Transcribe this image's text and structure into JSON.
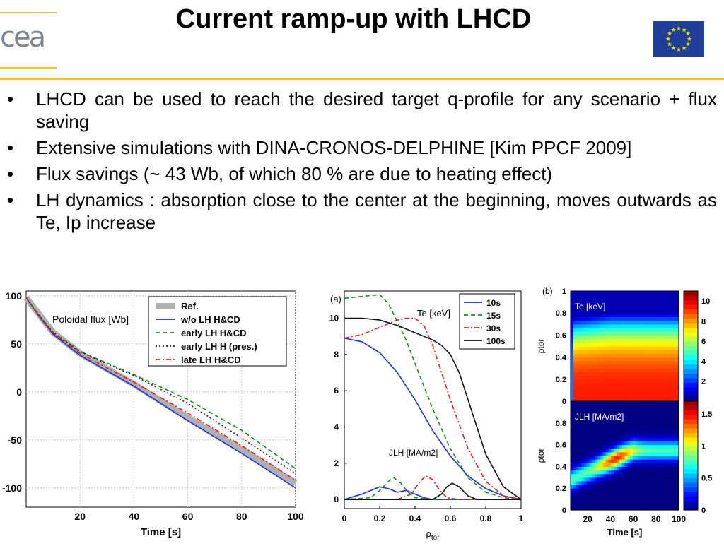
{
  "header": {
    "logo_text": "cea",
    "title": "Current ramp-up with LHCD",
    "flag_icon": "eu-flag-icon"
  },
  "bullets": [
    "LHCD can be used to reach the desired target q-profile for any scenario + flux saving",
    "Extensive simulations with DINA-CRONOS-DELPHINE [Kim PPCF 2009]",
    "Flux savings (~ 43 Wb, of which 80 % are due to heating effect)",
    "LH dynamics : absorption close to the center at the beginning, moves outwards as Te, Ip increase"
  ],
  "chart_data": [
    {
      "type": "line",
      "annotation": "Poloidal flux [Wb]",
      "xlabel": "Time [s]",
      "ylabel": "",
      "xlim": [
        0,
        100
      ],
      "ylim": [
        -120,
        105
      ],
      "xticks": [
        "20",
        "40",
        "60",
        "80",
        "100"
      ],
      "yticks": [
        "100",
        "50",
        "0",
        "-50",
        "-100"
      ],
      "grid": true,
      "legend": "top-right",
      "series": [
        {
          "name": "Ref.",
          "color": "#b0b0b0",
          "style": "band",
          "x": [
            0,
            5,
            10,
            20,
            30,
            40,
            60,
            80,
            100
          ],
          "y": [
            98,
            80,
            62,
            40,
            24,
            8,
            -27,
            -60,
            -95
          ]
        },
        {
          "name": "w/o LH H&CD",
          "color": "#1f2fd6",
          "style": "solid",
          "x": [
            0,
            5,
            10,
            20,
            30,
            40,
            60,
            80,
            100
          ],
          "y": [
            98,
            78,
            60,
            38,
            22,
            6,
            -30,
            -64,
            -100
          ]
        },
        {
          "name": "early LH H&CD",
          "color": "#1a8a1a",
          "style": "dashed",
          "x": [
            0,
            5,
            10,
            20,
            30,
            40,
            60,
            80,
            100
          ],
          "y": [
            98,
            79,
            62,
            42,
            30,
            18,
            -8,
            -40,
            -80
          ]
        },
        {
          "name": "early LH H (pres.)",
          "color": "#222222",
          "style": "dotted",
          "x": [
            0,
            5,
            10,
            20,
            30,
            40,
            60,
            80,
            100
          ],
          "y": [
            98,
            79,
            62,
            42,
            29,
            17,
            -12,
            -48,
            -85
          ]
        },
        {
          "name": "late LH H&CD",
          "color": "#e02020",
          "style": "dashdot",
          "x": [
            0,
            5,
            10,
            20,
            30,
            40,
            60,
            80,
            100
          ],
          "y": [
            98,
            78,
            61,
            40,
            25,
            10,
            -22,
            -56,
            -92
          ]
        }
      ]
    },
    {
      "type": "line",
      "panel_label": "(a)",
      "xlabel": "ρtor",
      "xlim": [
        0,
        1
      ],
      "ylim": [
        -0.5,
        11.5
      ],
      "xticks": [
        "0",
        "0.2",
        "0.4",
        "0.6",
        "0.8",
        "1"
      ],
      "yticks": [
        "0",
        "2",
        "4",
        "6",
        "8",
        "10"
      ],
      "annotations": [
        "Te [keV]",
        "JLH [MA/m2]"
      ],
      "legend": "top-right",
      "series": [
        {
          "name": "10s",
          "color": "#1f2fd6",
          "style": "solid",
          "x": [
            0,
            0.1,
            0.2,
            0.3,
            0.4,
            0.5,
            0.6,
            0.7,
            0.8,
            0.9,
            1.0
          ],
          "y": [
            8.9,
            8.7,
            8.1,
            7.0,
            5.5,
            3.8,
            2.4,
            1.3,
            0.6,
            0.2,
            0.0
          ]
        },
        {
          "name": "15s",
          "color": "#1a8a1a",
          "style": "dashed",
          "x": [
            0,
            0.1,
            0.2,
            0.25,
            0.3,
            0.35,
            0.4,
            0.5,
            0.6,
            0.7,
            0.8,
            0.9,
            1.0
          ],
          "y": [
            11.1,
            11.2,
            11.3,
            10.8,
            9.8,
            8.8,
            7.5,
            5.0,
            2.8,
            1.2,
            0.4,
            0.1,
            0.0
          ]
        },
        {
          "name": "30s",
          "color": "#e02020",
          "style": "dashdot",
          "x": [
            0,
            0.1,
            0.2,
            0.3,
            0.35,
            0.4,
            0.45,
            0.5,
            0.6,
            0.7,
            0.8,
            0.9,
            1.0
          ],
          "y": [
            8.9,
            9.1,
            9.5,
            9.9,
            10.0,
            10.0,
            9.6,
            8.5,
            5.5,
            2.8,
            1.0,
            0.2,
            0.0
          ]
        },
        {
          "name": "100s",
          "color": "#111111",
          "style": "solid",
          "x": [
            0,
            0.1,
            0.2,
            0.3,
            0.4,
            0.5,
            0.55,
            0.6,
            0.65,
            0.7,
            0.8,
            0.9,
            1.0
          ],
          "y": [
            10.0,
            10.0,
            9.9,
            9.6,
            9.2,
            8.8,
            8.5,
            8.0,
            7.0,
            5.5,
            2.5,
            0.7,
            0.0
          ]
        },
        {
          "name": "JLH 10s",
          "color": "#1f2fd6",
          "style": "solid",
          "x": [
            0,
            0.1,
            0.15,
            0.2,
            0.25,
            0.3,
            0.35,
            0.4,
            0.45,
            0.5,
            0.6,
            0.8,
            1.0
          ],
          "y": [
            0.0,
            0.3,
            0.5,
            0.7,
            0.6,
            0.4,
            0.5,
            0.3,
            0.1,
            0.0,
            0.0,
            0.0,
            0.0
          ]
        },
        {
          "name": "JLH 15s",
          "color": "#1a8a1a",
          "style": "dashed",
          "x": [
            0,
            0.15,
            0.2,
            0.25,
            0.28,
            0.32,
            0.36,
            0.4,
            0.5,
            0.7,
            1.0
          ],
          "y": [
            0.0,
            0.1,
            0.5,
            1.0,
            1.2,
            0.9,
            0.4,
            0.1,
            0.0,
            0.0,
            0.0
          ]
        },
        {
          "name": "JLH 30s",
          "color": "#e02020",
          "style": "dashdot",
          "x": [
            0,
            0.3,
            0.38,
            0.42,
            0.46,
            0.5,
            0.54,
            0.58,
            0.65,
            1.0
          ],
          "y": [
            0.0,
            0.0,
            0.3,
            0.9,
            1.3,
            1.1,
            0.5,
            0.1,
            0.0,
            0.0
          ]
        },
        {
          "name": "JLH 100s",
          "color": "#111111",
          "style": "solid",
          "x": [
            0,
            0.5,
            0.55,
            0.58,
            0.61,
            0.65,
            0.7,
            0.75,
            1.0
          ],
          "y": [
            0.0,
            0.0,
            0.3,
            0.7,
            0.9,
            0.7,
            0.2,
            0.0,
            0.0
          ]
        }
      ]
    },
    {
      "type": "heatmap",
      "panel_label": "(b)",
      "xlabel": "Time [s]",
      "xticks": [
        "20",
        "40",
        "60",
        "80",
        "100"
      ],
      "subplots": [
        {
          "annotation": "Te [keV]",
          "ylabel": "ρtor",
          "ylim": [
            0,
            1
          ],
          "yticks": [
            "1",
            "0.8",
            "0.6",
            "0.4",
            "0.2",
            "0"
          ],
          "colorbar_ticks": [
            "10",
            "8",
            "6",
            "4",
            "2"
          ],
          "vmin": 0,
          "vmax": 11
        },
        {
          "annotation": "JLH [MA/m2]",
          "ylabel": "ρtor",
          "ylim": [
            0,
            1
          ],
          "yticks": [
            "0.8",
            "0.6",
            "0.4",
            "0.2",
            "0"
          ],
          "colorbar_ticks": [
            "1.5",
            "1",
            "0.5",
            "0"
          ],
          "vmin": 0,
          "vmax": 1.7
        }
      ]
    }
  ]
}
